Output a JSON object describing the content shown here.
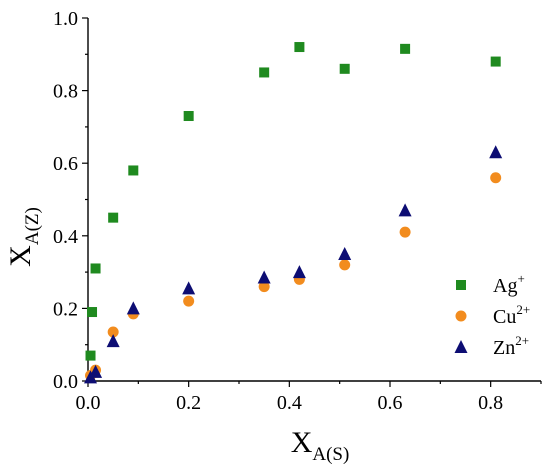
{
  "chart_data": {
    "type": "scatter",
    "xlabel": {
      "main": "X",
      "sub": "A(S)"
    },
    "ylabel": {
      "main": "X",
      "sub": "A(Z)"
    },
    "xlim": [
      0,
      0.9
    ],
    "ylim": [
      0,
      1.0
    ],
    "x_ticks": [
      "0.0",
      "0.2",
      "0.4",
      "0.6",
      "0.8"
    ],
    "y_ticks": [
      "0.0",
      "0.2",
      "0.4",
      "0.6",
      "0.8",
      "1.0"
    ],
    "grid": false,
    "legend_position": "bottom-right",
    "series": [
      {
        "name": "Ag",
        "sup": "+",
        "marker": "square",
        "color": "#1f8a1f",
        "points": [
          [
            0.005,
            0.07
          ],
          [
            0.008,
            0.19
          ],
          [
            0.015,
            0.31
          ],
          [
            0.05,
            0.45
          ],
          [
            0.09,
            0.58
          ],
          [
            0.2,
            0.73
          ],
          [
            0.35,
            0.85
          ],
          [
            0.42,
            0.92
          ],
          [
            0.51,
            0.86
          ],
          [
            0.63,
            0.915
          ],
          [
            0.81,
            0.88
          ]
        ]
      },
      {
        "name": "Cu",
        "sup": "2+",
        "marker": "circle",
        "color": "#f28c1e",
        "points": [
          [
            0.005,
            0.015
          ],
          [
            0.015,
            0.03
          ],
          [
            0.05,
            0.135
          ],
          [
            0.09,
            0.185
          ],
          [
            0.2,
            0.22
          ],
          [
            0.35,
            0.26
          ],
          [
            0.42,
            0.28
          ],
          [
            0.51,
            0.32
          ],
          [
            0.63,
            0.41
          ],
          [
            0.81,
            0.56
          ]
        ]
      },
      {
        "name": "Zn",
        "sup": "2+",
        "marker": "triangle",
        "color": "#0d0d73",
        "points": [
          [
            0.005,
            0.01
          ],
          [
            0.015,
            0.025
          ],
          [
            0.05,
            0.11
          ],
          [
            0.09,
            0.2
          ],
          [
            0.2,
            0.255
          ],
          [
            0.35,
            0.285
          ],
          [
            0.42,
            0.3
          ],
          [
            0.51,
            0.35
          ],
          [
            0.63,
            0.47
          ],
          [
            0.81,
            0.63
          ]
        ]
      }
    ]
  }
}
